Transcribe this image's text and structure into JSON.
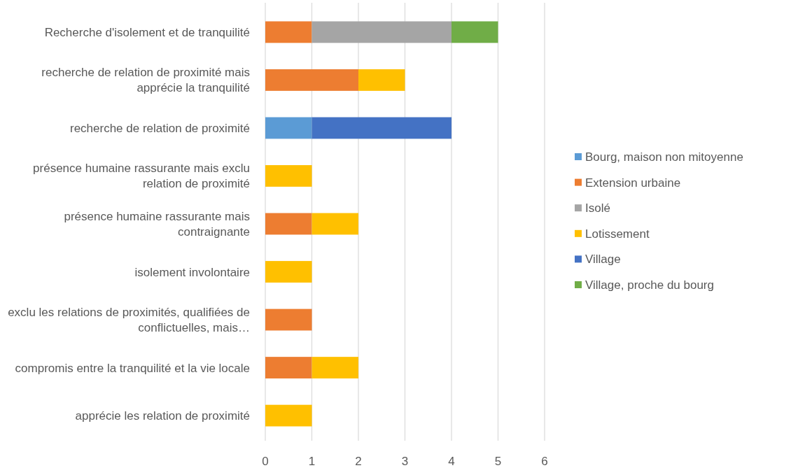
{
  "chart_data": {
    "type": "bar",
    "orientation": "horizontal",
    "stacked": true,
    "categories": [
      "Recherche d'isolement et de tranquilité",
      "recherche de relation de proximité mais apprécie la tranquilité",
      "recherche de relation de proximité",
      "présence humaine rassurante mais exclu relation de proximité",
      "présence humaine rassurante mais contraignante",
      "isolement involontaire",
      "exclu les relations de proximités, qualifiées de conflictuelles, mais…",
      "compromis entre la tranquilité et la vie locale",
      "apprécie les relation de proximité"
    ],
    "series": [
      {
        "name": "Bourg, maison non mitoyenne",
        "color": "#5b9bd5",
        "values": [
          null,
          null,
          1,
          null,
          null,
          null,
          null,
          null,
          null
        ]
      },
      {
        "name": "Extension urbaine",
        "color": "#ed7d31",
        "values": [
          1,
          2,
          null,
          null,
          1,
          null,
          1,
          1,
          null
        ]
      },
      {
        "name": "Isolé",
        "color": "#a5a5a5",
        "values": [
          3,
          null,
          null,
          null,
          null,
          null,
          null,
          null,
          null
        ]
      },
      {
        "name": "Lotissement",
        "color": "#ffc000",
        "values": [
          null,
          1,
          null,
          1,
          1,
          1,
          null,
          1,
          1
        ]
      },
      {
        "name": "Village",
        "color": "#4472c4",
        "values": [
          null,
          null,
          3,
          null,
          null,
          null,
          null,
          null,
          null
        ]
      },
      {
        "name": "Village, proche du bourg",
        "color": "#70ad47",
        "values": [
          1,
          null,
          null,
          null,
          null,
          null,
          null,
          null,
          null
        ]
      }
    ],
    "xlim": [
      0,
      6
    ],
    "xticks": [
      0,
      1,
      2,
      3,
      4,
      5,
      6
    ],
    "grid": "x",
    "legend": "right"
  }
}
